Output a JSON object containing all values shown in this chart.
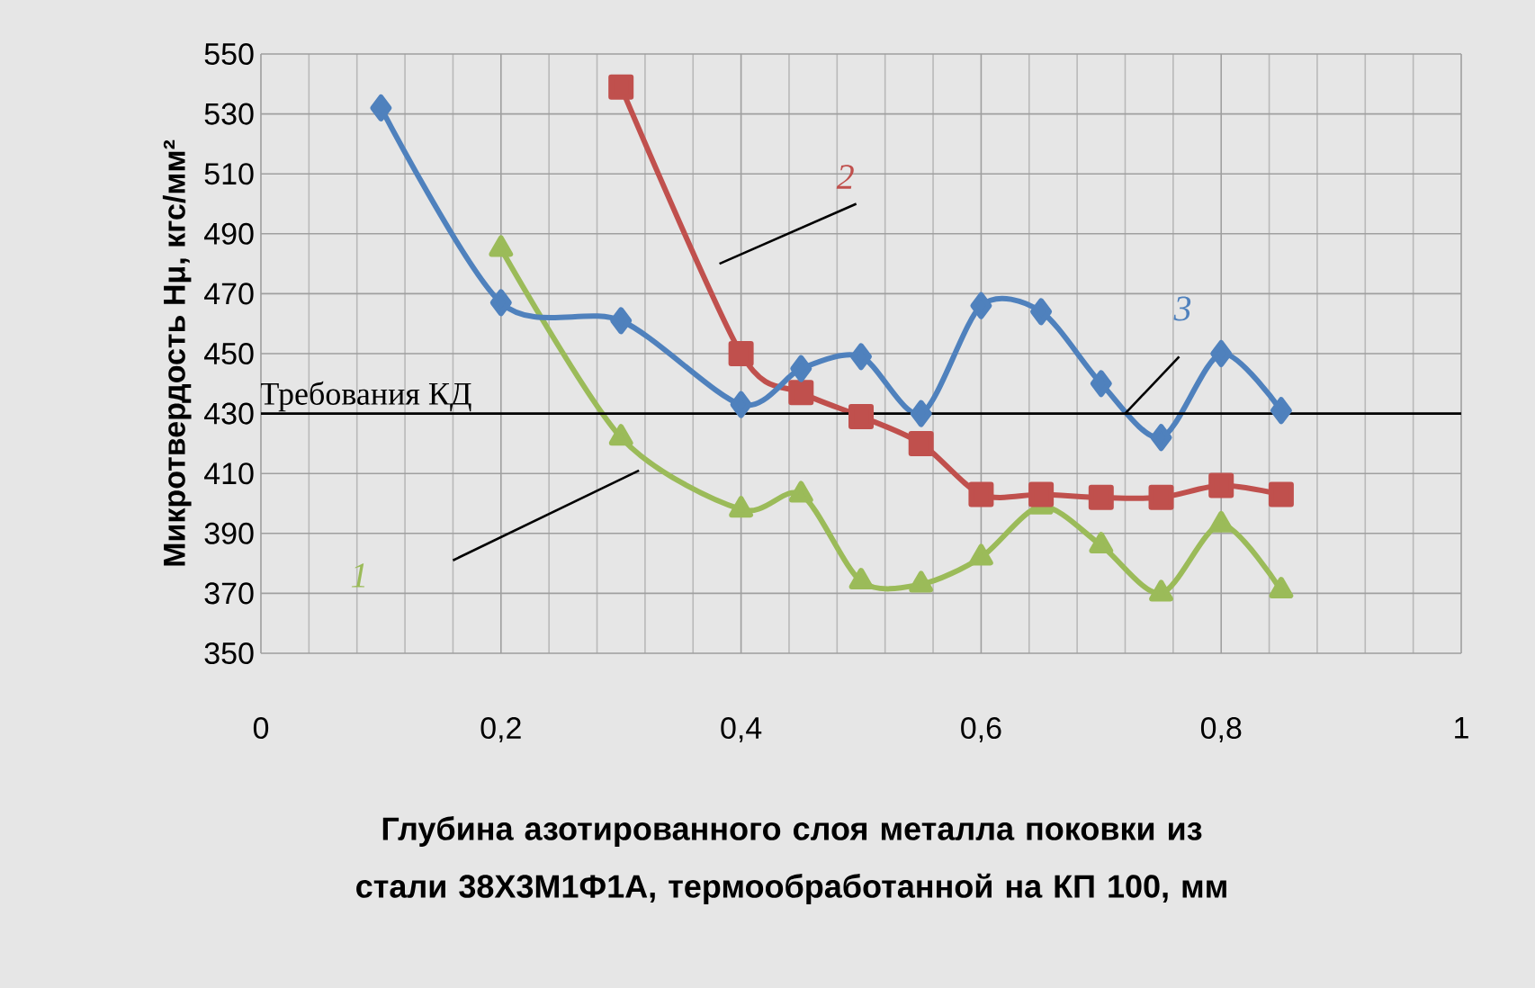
{
  "chart_data": {
    "type": "line",
    "xlabel": "Глубина азотированного слоя металла поковки из стали 38Х3М1Ф1А, термообработанной на КП 100, мм",
    "ylabel": "Микротвердость Hμ, кгс/мм²",
    "xlim": [
      0,
      1
    ],
    "ylim": [
      350,
      550
    ],
    "xticks": [
      0,
      {
        "value": 0.2,
        "label": "0,2"
      },
      {
        "value": 0.4,
        "label": "0,4"
      },
      {
        "value": 0.6,
        "label": "0,6"
      },
      {
        "value": 0.8,
        "label": "0,8"
      },
      1
    ],
    "yticks": [
      350,
      370,
      390,
      410,
      430,
      450,
      470,
      490,
      510,
      530,
      550
    ],
    "grid": true,
    "legend": false,
    "line_style": "solid",
    "ref_lines": [
      {
        "axis": "y",
        "value": 430,
        "label": "Требования КД",
        "color": "#000000"
      }
    ],
    "series": [
      {
        "name": "1",
        "color": "#9bbb59",
        "marker": "triangle",
        "x": [
          0.2,
          0.3,
          0.4,
          0.45,
          0.5,
          0.55,
          0.6,
          0.65,
          0.7,
          0.75,
          0.8,
          0.85
        ],
        "values": [
          485,
          422,
          398,
          403,
          374,
          373,
          382,
          399,
          386,
          370,
          393,
          371
        ]
      },
      {
        "name": "2",
        "color": "#c0504d",
        "marker": "square",
        "x": [
          0.3,
          0.4,
          0.45,
          0.5,
          0.55,
          0.6,
          0.65,
          0.7,
          0.75,
          0.8,
          0.85
        ],
        "values": [
          539,
          450,
          437,
          429,
          420,
          403,
          403,
          402,
          402,
          406,
          403
        ]
      },
      {
        "name": "3",
        "color": "#4f81bd",
        "marker": "diamond",
        "x": [
          0.1,
          0.2,
          0.3,
          0.4,
          0.45,
          0.5,
          0.55,
          0.6,
          0.65,
          0.7,
          0.75,
          0.8,
          0.85
        ],
        "values": [
          532,
          467,
          461,
          433,
          445,
          449,
          430,
          466,
          464,
          440,
          422,
          450,
          431
        ]
      }
    ]
  }
}
